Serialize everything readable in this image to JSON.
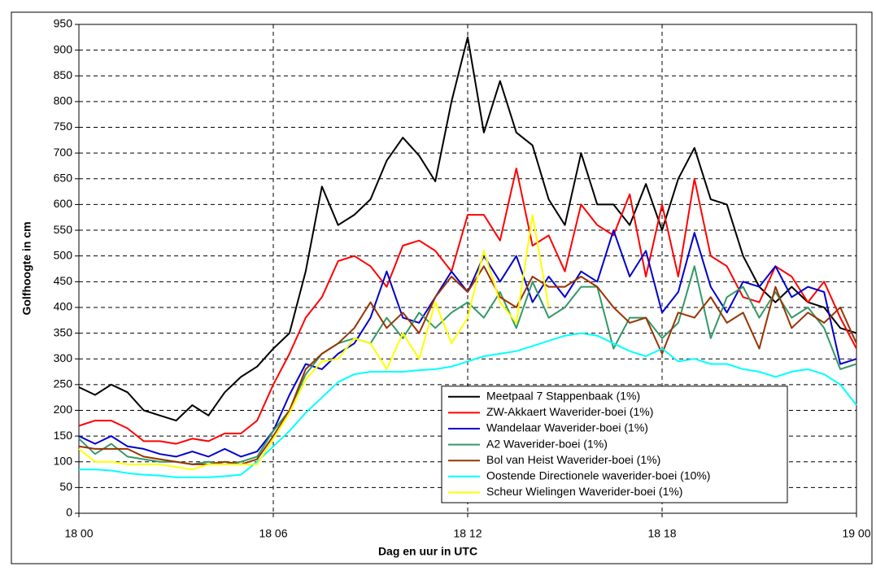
{
  "chart_data": {
    "type": "line",
    "x_label": "Dag en uur in UTC",
    "y_label": "Golfhoogte in cm",
    "x": [
      0,
      0.5,
      1,
      1.5,
      2,
      2.5,
      3,
      3.5,
      4,
      4.5,
      5,
      5.5,
      6,
      6.5,
      7,
      7.5,
      8,
      8.5,
      9,
      9.5,
      10,
      10.5,
      11,
      11.5,
      12,
      12.5,
      13,
      13.5,
      14,
      14.5,
      15,
      15.5,
      16,
      16.5,
      17,
      17.5,
      18,
      18.5,
      19,
      19.5,
      20,
      20.5,
      21,
      21.5,
      22,
      22.5,
      23,
      23.5,
      24
    ],
    "xlim": [
      0,
      24
    ],
    "xticks": [
      {
        "value": 0,
        "label": "18 00"
      },
      {
        "value": 6,
        "label": "18 06"
      },
      {
        "value": 12,
        "label": "18 12"
      },
      {
        "value": 18,
        "label": "18 18"
      },
      {
        "value": 24,
        "label": "19 00"
      }
    ],
    "ylim": [
      0,
      950
    ],
    "yticks": [
      0,
      50,
      100,
      150,
      200,
      250,
      300,
      350,
      400,
      450,
      500,
      550,
      600,
      650,
      700,
      750,
      800,
      850,
      900,
      950
    ],
    "grid": true,
    "legend": "lower right",
    "series": [
      {
        "name": "Meetpaal 7 Stappenbaak (1%)",
        "color": "#000000",
        "values": [
          245,
          230,
          250,
          235,
          200,
          190,
          180,
          210,
          190,
          235,
          265,
          285,
          320,
          350,
          470,
          635,
          560,
          580,
          610,
          685,
          730,
          695,
          645,
          800,
          925,
          740,
          840,
          740,
          715,
          610,
          560,
          700,
          600,
          600,
          560,
          640,
          550,
          650,
          710,
          610,
          600,
          500,
          440,
          410,
          440,
          410,
          400,
          360,
          350
        ]
      },
      {
        "name": "ZW-Akkaert Waverider-boei (1%)",
        "color": "#ff0000",
        "values": [
          170,
          180,
          180,
          165,
          140,
          140,
          135,
          145,
          140,
          155,
          155,
          180,
          250,
          310,
          380,
          420,
          490,
          500,
          480,
          440,
          520,
          530,
          510,
          470,
          580,
          580,
          530,
          670,
          520,
          540,
          470,
          600,
          560,
          540,
          620,
          460,
          600,
          460,
          650,
          500,
          480,
          420,
          410,
          480,
          460,
          410,
          450,
          380,
          320
        ]
      },
      {
        "name": "Wandelaar Waverider-boei (1%)",
        "color": "#0000cc",
        "values": [
          150,
          135,
          150,
          130,
          125,
          115,
          110,
          120,
          110,
          125,
          110,
          120,
          160,
          230,
          290,
          280,
          310,
          330,
          380,
          470,
          380,
          370,
          420,
          470,
          430,
          500,
          450,
          500,
          410,
          460,
          420,
          470,
          450,
          550,
          460,
          510,
          390,
          430,
          545,
          440,
          390,
          450,
          440,
          480,
          420,
          440,
          430,
          290,
          300
        ]
      },
      {
        "name": "A2 Waverider-boei (1%)",
        "color": "#339966",
        "values": [
          145,
          115,
          135,
          110,
          105,
          100,
          100,
          95,
          100,
          95,
          100,
          110,
          160,
          200,
          270,
          310,
          330,
          340,
          330,
          380,
          340,
          390,
          360,
          390,
          410,
          380,
          430,
          360,
          450,
          380,
          400,
          440,
          440,
          320,
          380,
          380,
          340,
          370,
          480,
          340,
          420,
          440,
          380,
          430,
          380,
          400,
          360,
          280,
          290
        ]
      },
      {
        "name": "Bol van Heist Waverider-boei (1%)",
        "color": "#993300",
        "values": [
          130,
          125,
          125,
          125,
          110,
          105,
          100,
          95,
          95,
          100,
          95,
          105,
          150,
          200,
          280,
          310,
          330,
          360,
          410,
          360,
          390,
          350,
          420,
          460,
          430,
          480,
          420,
          400,
          460,
          440,
          440,
          460,
          440,
          400,
          370,
          380,
          310,
          390,
          380,
          420,
          370,
          390,
          320,
          440,
          360,
          390,
          370,
          400,
          330
        ]
      },
      {
        "name": "Oostende Directionele waverider-boei (10%)",
        "color": "#00ffff",
        "values": [
          85,
          85,
          83,
          78,
          75,
          73,
          70,
          70,
          70,
          72,
          75,
          100,
          130,
          160,
          195,
          225,
          255,
          270,
          275,
          275,
          275,
          278,
          280,
          285,
          295,
          305,
          310,
          315,
          325,
          335,
          345,
          350,
          345,
          330,
          315,
          305,
          320,
          295,
          300,
          290,
          290,
          280,
          275,
          265,
          275,
          280,
          270,
          250,
          210
        ]
      },
      {
        "name": "Scheur Wielingen Waverider-boei (1%)",
        "color": "#ffff00",
        "values": [
          125,
          100,
          100,
          95,
          95,
          95,
          90,
          85,
          95,
          95,
          95,
          95,
          145,
          195,
          260,
          295,
          300,
          340,
          330,
          280,
          350,
          300,
          410,
          330,
          380,
          510,
          410,
          370,
          580,
          400,
          null,
          null,
          null,
          null,
          null,
          null,
          null,
          null,
          null,
          null,
          null,
          null,
          null,
          null,
          null,
          null,
          null,
          null,
          null
        ]
      }
    ]
  }
}
